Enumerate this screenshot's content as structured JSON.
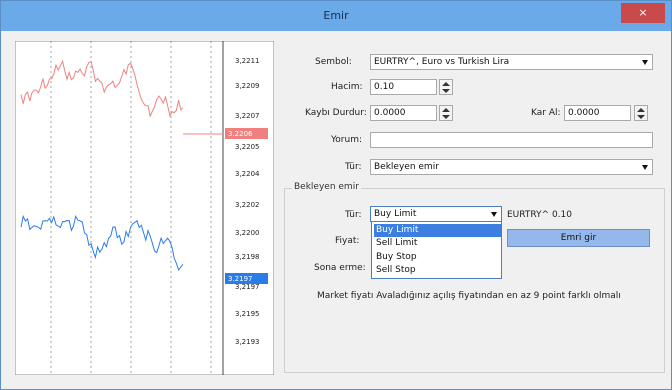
{
  "window": {
    "title": "Emir",
    "close_glyph": "×"
  },
  "chart": {
    "price_labels": [
      "3,2211",
      "3,2209",
      "3,2207",
      "3,2205",
      "3,2204",
      "3,2202",
      "3,2200",
      "3,2198",
      "3,2197",
      "3,2195",
      "3,2193"
    ],
    "ask_badge": "3.2206",
    "bid_badge": "3.2197",
    "ask_color": "#f08080",
    "bid_color": "#2a7de8"
  },
  "form": {
    "symbol_label": "Sembol:",
    "symbol_value": "EURTRY^, Euro vs Turkish Lira",
    "volume_label": "Hacim:",
    "volume_value": "0.10",
    "stoploss_label": "Kaybı Durdur:",
    "stoploss_value": "0.0000",
    "takeprofit_label": "Kar Al:",
    "takeprofit_value": "0.0000",
    "comment_label": "Yorum:",
    "comment_value": "",
    "type_label": "Tür:",
    "type_value": "Bekleyen emir"
  },
  "pending": {
    "group_title": "Bekleyen emir",
    "type_label": "Tür:",
    "type_value": "Buy Limit",
    "info_text": "EURTRY^ 0.10",
    "price_label": "Fiyat:",
    "expiry_label": "Sona erme:",
    "submit_label": "Emri gir",
    "options": [
      "Buy Limit",
      "Sell Limit",
      "Buy Stop",
      "Sell Stop"
    ],
    "note": "Market fiyatı Avaladığınız açılış fiyatından en az 9 point farklı olmalı"
  }
}
